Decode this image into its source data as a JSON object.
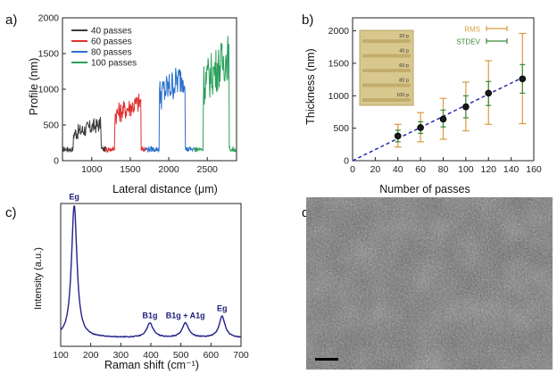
{
  "panels": {
    "a": "a)",
    "b": "b)",
    "c": "c)",
    "d": "d)"
  },
  "chart_data": [
    {
      "type": "line",
      "panel": "a",
      "xlabel": "Lateral distance (μm)",
      "ylabel": "Profile (nm)",
      "xlim": [
        620,
        2880
      ],
      "ylim": [
        0,
        2000
      ],
      "xticks": [
        1000,
        1500,
        2000,
        2500
      ],
      "yticks": [
        0,
        500,
        1000,
        1500,
        2000
      ],
      "legend_position": "top-left",
      "series": [
        {
          "name": "40 passes",
          "color": "#3a3a3a",
          "start": 620,
          "rise": 760,
          "fall": 1120,
          "end": 1180,
          "plateau": 420,
          "spread": 110
        },
        {
          "name": "60 passes",
          "color": "#e03030",
          "start": 1180,
          "rise": 1300,
          "fall": 1640,
          "end": 1700,
          "plateau": 700,
          "spread": 150
        },
        {
          "name": "80 passes",
          "color": "#2a6fcc",
          "start": 1700,
          "rise": 1880,
          "fall": 2210,
          "end": 2330,
          "plateau": 1000,
          "spread": 230
        },
        {
          "name": "100 passes",
          "color": "#2aa05a",
          "start": 2330,
          "rise": 2450,
          "fall": 2780,
          "end": 2880,
          "plateau": 1200,
          "spread": 320
        }
      ]
    },
    {
      "type": "scatter",
      "panel": "b",
      "xlabel": "Number of passes",
      "ylabel": "Thickness (nm)",
      "xlim": [
        0,
        160
      ],
      "ylim": [
        0,
        2200
      ],
      "xticks": [
        0,
        20,
        40,
        60,
        80,
        100,
        120,
        140,
        160
      ],
      "yticks": [
        0,
        500,
        1000,
        1500,
        2000
      ],
      "points": [
        {
          "x": 40,
          "y": 380,
          "rms_lo": 210,
          "rms_hi": 560,
          "sd_lo": 290,
          "sd_hi": 470
        },
        {
          "x": 60,
          "y": 510,
          "rms_lo": 290,
          "rms_hi": 740,
          "sd_lo": 420,
          "sd_hi": 600
        },
        {
          "x": 80,
          "y": 640,
          "rms_lo": 330,
          "rms_hi": 960,
          "sd_lo": 520,
          "sd_hi": 780
        },
        {
          "x": 100,
          "y": 830,
          "rms_lo": 460,
          "rms_hi": 1210,
          "sd_lo": 660,
          "sd_hi": 1000
        },
        {
          "x": 120,
          "y": 1040,
          "rms_lo": 560,
          "rms_hi": 1540,
          "sd_lo": 850,
          "sd_hi": 1220
        },
        {
          "x": 150,
          "y": 1260,
          "rms_lo": 570,
          "rms_hi": 1960,
          "sd_lo": 1040,
          "sd_hi": 1480
        }
      ],
      "fit": {
        "x": [
          0,
          150
        ],
        "y": [
          0,
          1280
        ],
        "color": "#2a2ab0"
      },
      "legend": [
        {
          "label": "RMS",
          "color": "#d99a40"
        },
        {
          "label": "STDEV",
          "color": "#3a8a3a"
        }
      ],
      "legend_position": "top-right",
      "inset_labels": [
        "20 p",
        "40 p",
        "60 p",
        "80 p",
        "100 p"
      ]
    },
    {
      "type": "line",
      "panel": "c",
      "xlabel": "Raman shift (cm⁻¹)",
      "ylabel": "Intensity (a.u.)",
      "xlim": [
        100,
        700
      ],
      "xticks": [
        100,
        200,
        300,
        400,
        500,
        600,
        700
      ],
      "color": "#22228a",
      "baseline": 0.06,
      "peaks": [
        {
          "x": 145,
          "h": 0.93,
          "w": 11,
          "label": "Eg"
        },
        {
          "x": 397,
          "h": 0.1,
          "w": 13,
          "label": "B1g"
        },
        {
          "x": 515,
          "h": 0.1,
          "w": 13,
          "label": "B1g + A1g"
        },
        {
          "x": 637,
          "h": 0.15,
          "w": 12,
          "label": "Eg"
        }
      ]
    }
  ]
}
